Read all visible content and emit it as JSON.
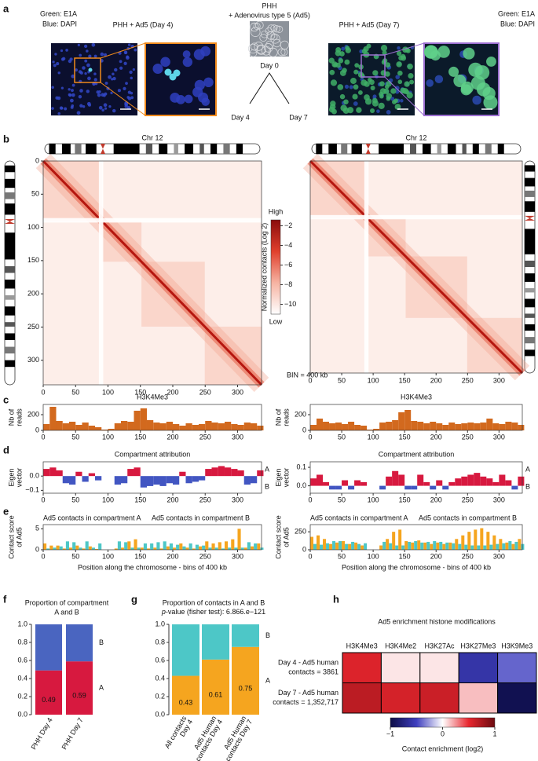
{
  "panel_labels": [
    "a",
    "b",
    "c",
    "d",
    "e",
    "f",
    "g",
    "h"
  ],
  "panel_a": {
    "left_legend": [
      "Green: E1A",
      "Blue: DAPI"
    ],
    "left_title": "PHH + Ad5 (Day 4)",
    "center_title": [
      "PHH",
      "+ Adenovirus type 5 (Ad5)"
    ],
    "day0": "Day 0",
    "day4": "Day 4",
    "day7": "Day 7",
    "day4_color": "#f08a1c",
    "day7_color": "#9b6fd0",
    "right_title": "PHH + Ad5 (Day 7)",
    "right_legend": [
      "Green: E1A",
      "Blue: DAPI"
    ]
  },
  "chart_data": [
    {
      "type": "contact_map",
      "title": "Chr 12",
      "xlim": [
        0,
        337
      ],
      "ylim": [
        0,
        337
      ],
      "y_inverted": true,
      "xticks": [
        0,
        50,
        100,
        150,
        200,
        250,
        300
      ],
      "yticks": [
        0,
        50,
        100,
        150,
        200,
        250,
        300
      ],
      "colorbar": {
        "label": "Normalized contacts (Log 2)",
        "high": "High",
        "low": "Low",
        "clim": [
          -11,
          -1.4
        ],
        "colors": [
          "#ffffff",
          "#f6b3a2",
          "#e0402c",
          "#8a0c0c"
        ],
        "ticks": [
          {
            "value": -2,
            "label": "−2"
          },
          {
            "value": -4,
            "label": "−4"
          },
          {
            "value": -6,
            "label": "−6"
          },
          {
            "value": -8,
            "label": "−8"
          },
          {
            "value": -10,
            "label": "−10"
          }
        ]
      }
    },
    {
      "type": "contact_map",
      "title": "Chr 12",
      "xlim": [
        0,
        337
      ],
      "ylim": [
        0,
        337
      ],
      "y_inverted": true,
      "xticks": [
        0,
        50,
        100,
        150,
        200,
        250,
        300
      ],
      "annotation": "BIN = 400 kb"
    },
    {
      "type": "bar",
      "title": "H3K4Me3",
      "ylabel": [
        "Nb of",
        "reads"
      ],
      "color": "#d2691e",
      "x": [
        5,
        15,
        25,
        35,
        45,
        55,
        65,
        75,
        85,
        95,
        105,
        115,
        125,
        135,
        145,
        155,
        165,
        175,
        185,
        195,
        205,
        215,
        225,
        235,
        245,
        255,
        265,
        275,
        285,
        295,
        305,
        315,
        325,
        335
      ],
      "values": [
        80,
        300,
        120,
        90,
        110,
        70,
        100,
        60,
        40,
        10,
        20,
        90,
        120,
        110,
        250,
        280,
        130,
        100,
        90,
        110,
        80,
        60,
        90,
        70,
        80,
        120,
        100,
        90,
        110,
        80,
        70,
        100,
        90,
        60
      ],
      "xlim": [
        0,
        337
      ],
      "ylim": [
        0,
        330
      ],
      "yticks": [
        0,
        200
      ],
      "xticks": [
        0,
        50,
        100,
        150,
        200,
        250,
        300
      ]
    },
    {
      "type": "bar",
      "title": "H3K4Me3",
      "ylabel": [
        "Nb of",
        "reads"
      ],
      "color": "#d2691e",
      "x": [
        5,
        15,
        25,
        35,
        45,
        55,
        65,
        75,
        85,
        95,
        105,
        115,
        125,
        135,
        145,
        155,
        165,
        175,
        185,
        195,
        205,
        215,
        225,
        235,
        245,
        255,
        265,
        275,
        285,
        295,
        305,
        315,
        325,
        335
      ],
      "values": [
        70,
        150,
        110,
        90,
        100,
        80,
        110,
        70,
        60,
        10,
        20,
        100,
        110,
        130,
        230,
        260,
        120,
        110,
        90,
        110,
        90,
        70,
        100,
        80,
        90,
        100,
        90,
        100,
        150,
        90,
        80,
        110,
        100,
        70
      ],
      "xlim": [
        0,
        337
      ],
      "ylim": [
        0,
        330
      ],
      "yticks": [
        0,
        200
      ],
      "xticks": [
        0,
        50,
        100,
        150,
        200,
        250,
        300
      ]
    },
    {
      "type": "signed_bar",
      "title": "Compartment attribution",
      "ylabel": [
        "Eigen",
        "vector"
      ],
      "positive": {
        "name": "A",
        "color": "#d7193f"
      },
      "negative": {
        "name": "B",
        "color": "#4256c2"
      },
      "x": [
        5,
        15,
        25,
        35,
        45,
        55,
        65,
        75,
        85,
        95,
        105,
        115,
        125,
        135,
        145,
        155,
        165,
        175,
        185,
        195,
        205,
        215,
        225,
        235,
        245,
        255,
        265,
        275,
        285,
        295,
        305,
        315,
        325,
        335
      ],
      "values": [
        0.05,
        0.06,
        0.04,
        -0.05,
        -0.06,
        0.03,
        -0.04,
        0.02,
        -0.03,
        0,
        0,
        -0.06,
        -0.05,
        0.05,
        0.06,
        -0.08,
        -0.07,
        -0.06,
        -0.07,
        -0.05,
        -0.06,
        0.03,
        -0.05,
        -0.04,
        -0.03,
        0.05,
        0.06,
        0.07,
        0.06,
        0.05,
        0.04,
        -0.06,
        -0.05,
        0.04
      ],
      "xlim": [
        0,
        337
      ],
      "ylim": [
        -0.12,
        0.1
      ],
      "yticks": [
        {
          "value": -0.1,
          "label": "−0.1"
        },
        {
          "value": 0,
          "label": "0.0"
        }
      ],
      "xticks": [
        0,
        50,
        100,
        150,
        200,
        250,
        300
      ]
    },
    {
      "type": "signed_bar",
      "title": "Compartment attribution",
      "ylabel": [
        "Eigen",
        "vector"
      ],
      "positive": {
        "name": "A",
        "color": "#d7193f"
      },
      "negative": {
        "name": "B",
        "color": "#4256c2"
      },
      "x": [
        5,
        15,
        25,
        35,
        45,
        55,
        65,
        75,
        85,
        95,
        105,
        115,
        125,
        135,
        145,
        155,
        165,
        175,
        185,
        195,
        205,
        215,
        225,
        235,
        245,
        255,
        265,
        275,
        285,
        295,
        305,
        315,
        325,
        335
      ],
      "values": [
        0.04,
        0.06,
        0.02,
        -0.02,
        -0.02,
        0.03,
        -0.02,
        0.03,
        0.02,
        0,
        0,
        -0.02,
        0.05,
        0.08,
        0.06,
        -0.02,
        -0.02,
        0.06,
        0.02,
        -0.02,
        0.03,
        -0.02,
        0.02,
        0.04,
        0.05,
        0.06,
        0.07,
        0.05,
        0.04,
        0.02,
        0.06,
        0.03,
        -0.02,
        0.05
      ],
      "xlim": [
        0,
        337
      ],
      "ylim": [
        -0.04,
        0.13
      ],
      "yticks": [
        {
          "value": 0,
          "label": "0.0"
        },
        0.1
      ],
      "xticks": [
        0,
        50,
        100,
        150,
        200,
        250,
        300
      ]
    },
    {
      "type": "grouped_bar",
      "ylabel": [
        "Contact score",
        "of Ad5"
      ],
      "xlabel": "Position along the chromosome - bins of 400 kb",
      "x": [
        5,
        15,
        25,
        35,
        45,
        55,
        65,
        75,
        85,
        95,
        105,
        115,
        125,
        135,
        145,
        155,
        165,
        175,
        185,
        195,
        205,
        215,
        225,
        235,
        245,
        255,
        265,
        275,
        285,
        295,
        305,
        315,
        325,
        335
      ],
      "series": [
        {
          "name": "Ad5 contacts in compartment A",
          "color": "#f5a51f",
          "values": [
            1.5,
            1,
            1,
            0.3,
            0.5,
            1,
            0.3,
            0.8,
            0.2,
            0,
            0,
            0.3,
            0.5,
            2,
            2.5,
            0.5,
            0.3,
            0.5,
            0.3,
            0.8,
            0.5,
            1.5,
            0.5,
            0.3,
            0.8,
            2,
            1.5,
            1.8,
            2,
            2.5,
            5,
            0.5,
            0.8,
            1.5
          ]
        },
        {
          "name": "Ad5 contacts in compartment B",
          "color": "#4dc7c7",
          "values": [
            0.3,
            0.5,
            0.8,
            2,
            1.8,
            0.5,
            2,
            0.5,
            1.5,
            0,
            0,
            2,
            1.8,
            0.5,
            0.5,
            1.5,
            1.5,
            1.8,
            2,
            1.5,
            1.2,
            0.8,
            1.5,
            1.2,
            1,
            0.5,
            0.5,
            0.3,
            0.5,
            0.5,
            0.5,
            1.8,
            1.5,
            0.5
          ]
        }
      ],
      "xlim": [
        0,
        337
      ],
      "ylim": [
        0,
        6
      ],
      "yticks": [
        0,
        5
      ],
      "xticks": [
        0,
        50,
        100,
        150,
        200,
        250,
        300
      ]
    },
    {
      "type": "grouped_bar",
      "ylabel": [
        "Contact score",
        "of Ad5"
      ],
      "xlabel": "Position along the chromosome - bins of 400 kb",
      "x": [
        5,
        15,
        25,
        35,
        45,
        55,
        65,
        75,
        85,
        95,
        105,
        115,
        125,
        135,
        145,
        155,
        165,
        175,
        185,
        195,
        205,
        215,
        225,
        235,
        245,
        255,
        265,
        275,
        285,
        295,
        305,
        315,
        325,
        335
      ],
      "series": [
        {
          "name": "Ad5 contacts in compartment A",
          "color": "#f5a51f",
          "values": [
            180,
            200,
            150,
            80,
            100,
            120,
            80,
            100,
            60,
            0,
            0,
            60,
            150,
            250,
            280,
            120,
            100,
            130,
            100,
            80,
            100,
            80,
            100,
            150,
            200,
            250,
            280,
            300,
            250,
            200,
            150,
            100,
            80,
            150
          ]
        },
        {
          "name": "Ad5 contacts in compartment B",
          "color": "#4dc7c7",
          "values": [
            80,
            70,
            90,
            120,
            120,
            80,
            110,
            80,
            90,
            0,
            0,
            110,
            90,
            60,
            60,
            110,
            120,
            100,
            110,
            120,
            110,
            100,
            90,
            80,
            70,
            60,
            60,
            60,
            70,
            80,
            90,
            120,
            110,
            80
          ]
        }
      ],
      "xlim": [
        0,
        337
      ],
      "ylim": [
        0,
        350
      ],
      "yticks": [
        0,
        250
      ],
      "xticks": [
        0,
        50,
        100,
        150,
        200,
        250,
        300
      ]
    },
    {
      "type": "stacked_bar",
      "title": [
        "Proportion of compartment",
        "A and B"
      ],
      "categories": [
        "PHH Day 4",
        "PHH Day 7"
      ],
      "series": [
        {
          "name": "A",
          "color": "#d7193f",
          "values": [
            0.49,
            0.59
          ],
          "show_values": true
        },
        {
          "name": "B",
          "color": "#4a65c0",
          "values": [
            0.51,
            0.41
          ]
        }
      ],
      "ylim": [
        0,
        1
      ],
      "yticks": [
        {
          "value": 0,
          "label": "0.0"
        },
        0.2,
        0.4,
        0.6,
        0.8,
        {
          "value": 1,
          "label": "1.0"
        }
      ]
    },
    {
      "type": "stacked_bar",
      "title": [
        "Proportion of contacts in A and B"
      ],
      "subtitle_italic": "p",
      "subtitle": "-value (fisher test): 6.866.e−121",
      "categories": [
        [
          "All contacts",
          "Day 4"
        ],
        [
          "Ad5 Human",
          "contacts Day 4"
        ],
        [
          "Ad5 Human",
          "contacts Day 7"
        ]
      ],
      "series": [
        {
          "name": "A",
          "color": "#f5a51f",
          "values": [
            0.43,
            0.61,
            0.75
          ],
          "show_values": true
        },
        {
          "name": "B",
          "color": "#4dc7c7",
          "values": [
            0.57,
            0.39,
            0.25
          ]
        }
      ],
      "ylim": [
        0,
        1
      ],
      "yticks": [
        {
          "value": 0,
          "label": "0.0"
        },
        0.2,
        0.4,
        0.6,
        0.8,
        {
          "value": 1,
          "label": "1.0"
        }
      ]
    },
    {
      "type": "heatmap",
      "title": "Ad5 enrichment histone modifications",
      "columns": [
        "H3K4Me3",
        "H3K4Me2",
        "H3K27Ac",
        "H3K27Me3",
        "H3K9Me3"
      ],
      "rows": [
        [
          "Day 4 - Ad5 human",
          "contacts = 3861"
        ],
        [
          "Day 7 - Ad5 human",
          "contacts = 1,352,717"
        ]
      ],
      "values": [
        [
          0.55,
          0.06,
          0.06,
          -0.6,
          -0.4
        ],
        [
          0.68,
          0.58,
          0.62,
          0.15,
          -0.95
        ]
      ],
      "clim": [
        -1,
        1
      ],
      "colors": [
        "#0c0c45",
        "#3f3fbf",
        "#ffffff",
        "#e8262e",
        "#6b0a0f"
      ],
      "cticks": [
        {
          "value": -1,
          "label": "−1"
        },
        0,
        1
      ],
      "colorbar_label": "Contact enrichment (log2)"
    }
  ]
}
